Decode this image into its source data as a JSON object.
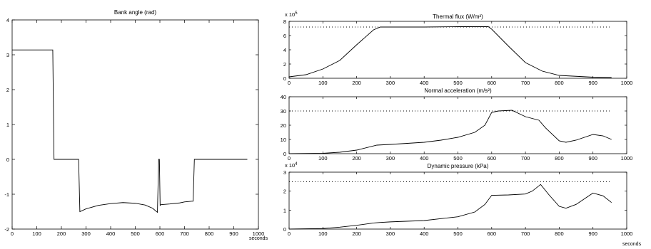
{
  "chart_data": [
    {
      "type": "line",
      "title": "Bank angle (rad)",
      "xlabel": "seconds",
      "ylabel": "",
      "xlim": [
        0,
        1000
      ],
      "ylim": [
        -2,
        4
      ],
      "xticks": [
        0,
        100,
        200,
        300,
        400,
        500,
        600,
        700,
        800,
        900,
        1000
      ],
      "yticks": [
        -2,
        -1,
        0,
        1,
        2,
        3,
        4
      ],
      "grid": false,
      "series": [
        {
          "x": [
            0,
            165,
            170,
            270,
            275,
            300,
            350,
            400,
            450,
            500,
            540,
            570,
            590,
            595,
            598,
            601,
            604,
            640,
            680,
            700,
            730,
            735,
            740,
            750,
            955
          ],
          "y": [
            3.14,
            3.14,
            0,
            0,
            -1.5,
            -1.42,
            -1.32,
            -1.27,
            -1.24,
            -1.26,
            -1.31,
            -1.4,
            -1.52,
            0,
            0,
            -1.32,
            -1.3,
            -1.28,
            -1.25,
            -1.22,
            -1.2,
            -1.2,
            0,
            0,
            0
          ]
        }
      ]
    },
    {
      "type": "line",
      "title": "Thermal flux (W/m²)",
      "xlabel": "",
      "ylabel": "",
      "exponent_label": "x 10",
      "exponent": "5",
      "xlim": [
        0,
        1000
      ],
      "ylim": [
        0,
        800000
      ],
      "xticks": [
        0,
        100,
        200,
        300,
        400,
        500,
        600,
        700,
        800,
        900,
        1000
      ],
      "yticks": [
        0,
        2,
        4,
        6,
        8
      ],
      "grid": false,
      "series": [
        {
          "x": [
            0,
            50,
            100,
            150,
            200,
            250,
            270,
            300,
            400,
            500,
            590,
            600,
            650,
            700,
            750,
            800,
            900,
            955
          ],
          "y": [
            20000,
            50000,
            130000,
            250000,
            470000,
            680000,
            720000,
            720000,
            720000,
            725000,
            725000,
            690000,
            450000,
            220000,
            100000,
            40000,
            15000,
            10000
          ]
        },
        {
          "style": "dotted",
          "x": [
            0,
            955
          ],
          "y": [
            720000,
            720000
          ]
        }
      ]
    },
    {
      "type": "line",
      "title": "Normal acceleration (m/s²)",
      "xlabel": "",
      "ylabel": "",
      "xlim": [
        0,
        1000
      ],
      "ylim": [
        0,
        40
      ],
      "xticks": [
        0,
        100,
        200,
        300,
        400,
        500,
        600,
        700,
        800,
        900,
        1000
      ],
      "yticks": [
        0,
        10,
        20,
        30,
        40
      ],
      "grid": false,
      "series": [
        {
          "x": [
            0,
            100,
            150,
            200,
            260,
            300,
            400,
            450,
            500,
            550,
            580,
            600,
            620,
            660,
            700,
            740,
            760,
            800,
            820,
            850,
            900,
            930,
            955
          ],
          "y": [
            0,
            0.3,
            1,
            2.5,
            6,
            6.5,
            8,
            9.5,
            11.5,
            15,
            20,
            29,
            30,
            30.5,
            26,
            23.5,
            18,
            9,
            8,
            9.5,
            13.5,
            12.5,
            10
          ]
        },
        {
          "style": "dotted",
          "x": [
            0,
            955
          ],
          "y": [
            30,
            30
          ]
        }
      ]
    },
    {
      "type": "line",
      "title": "Dynamic pressure (kPa)",
      "xlabel": "seconds",
      "ylabel": "",
      "exponent_label": "x 10",
      "exponent": "4",
      "xlim": [
        0,
        1000
      ],
      "ylim": [
        0,
        30000
      ],
      "xticks": [
        0,
        100,
        200,
        300,
        400,
        500,
        600,
        700,
        800,
        900,
        1000
      ],
      "yticks": [
        0,
        1,
        2,
        3
      ],
      "grid": false,
      "series": [
        {
          "x": [
            0,
            100,
            150,
            200,
            250,
            270,
            300,
            400,
            450,
            500,
            550,
            580,
            600,
            650,
            700,
            720,
            745,
            770,
            800,
            820,
            850,
            900,
            930,
            955
          ],
          "y": [
            0,
            300,
            1000,
            2000,
            3200,
            3500,
            3800,
            4500,
            5500,
            6500,
            9000,
            13000,
            17800,
            18000,
            18500,
            20000,
            23500,
            18000,
            12000,
            11000,
            13000,
            19000,
            17500,
            14000
          ]
        },
        {
          "style": "dotted",
          "x": [
            0,
            955
          ],
          "y": [
            25000,
            25000
          ]
        }
      ]
    }
  ]
}
